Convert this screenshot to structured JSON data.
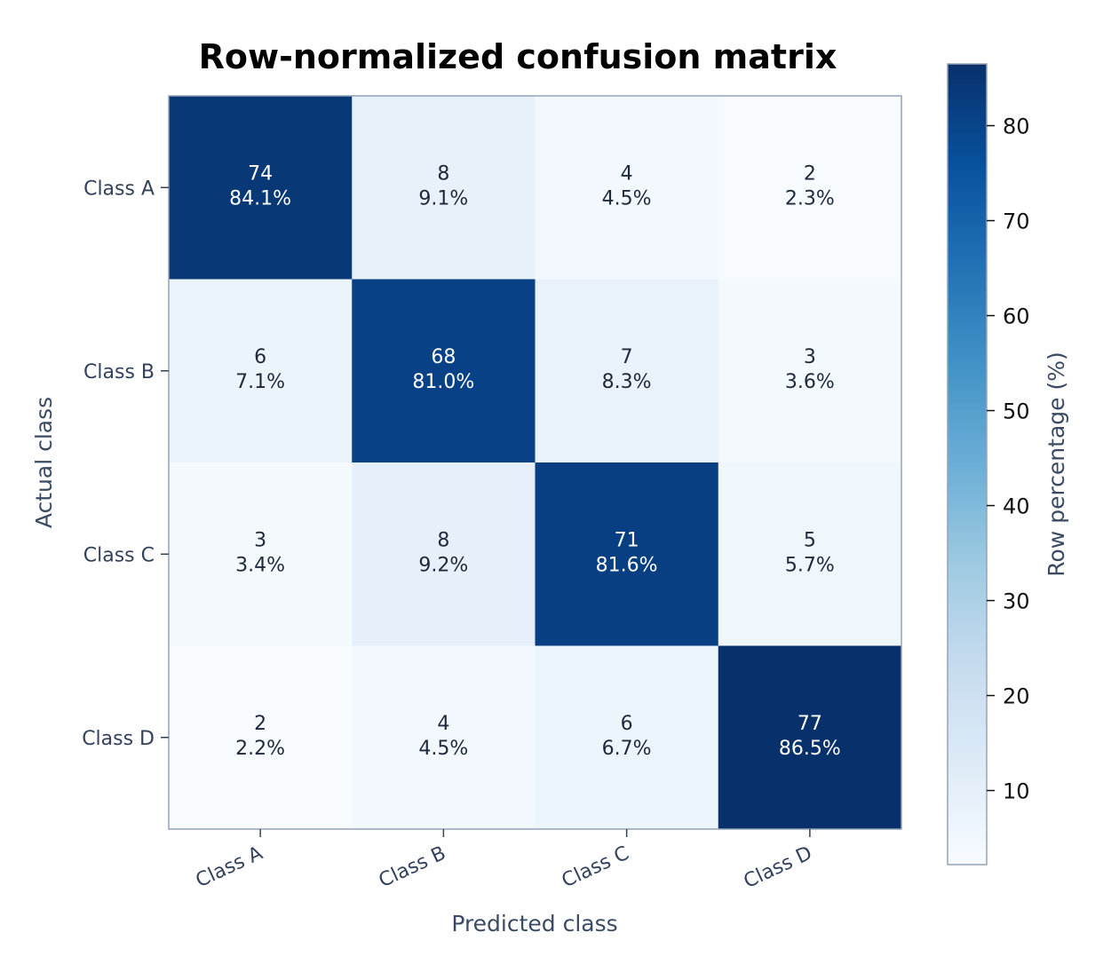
{
  "chart_data": {
    "type": "heatmap",
    "title": "Row-normalized confusion matrix",
    "xlabel": "Predicted class",
    "ylabel": "Actual class",
    "x_categories": [
      "Class A",
      "Class B",
      "Class C",
      "Class D"
    ],
    "y_categories": [
      "Class A",
      "Class B",
      "Class C",
      "Class D"
    ],
    "counts": [
      [
        74,
        8,
        4,
        2
      ],
      [
        6,
        68,
        7,
        3
      ],
      [
        3,
        8,
        71,
        5
      ],
      [
        2,
        4,
        6,
        77
      ]
    ],
    "percent_labels": [
      [
        "84.1%",
        "9.1%",
        "4.5%",
        "2.3%"
      ],
      [
        "7.1%",
        "81.0%",
        "8.3%",
        "3.6%"
      ],
      [
        "3.4%",
        "9.2%",
        "81.6%",
        "5.7%"
      ],
      [
        "2.2%",
        "4.5%",
        "6.7%",
        "86.5%"
      ]
    ],
    "percent_values": [
      [
        84.1,
        9.1,
        4.5,
        2.3
      ],
      [
        7.1,
        81.0,
        8.3,
        3.6
      ],
      [
        3.4,
        9.2,
        81.6,
        5.7
      ],
      [
        2.2,
        4.5,
        6.7,
        86.5
      ]
    ],
    "colorbar": {
      "label": "Row percentage (%)",
      "range": [
        2.2,
        86.5
      ],
      "ticks": [
        10,
        20,
        30,
        40,
        50,
        60,
        70,
        80
      ],
      "colormap": "Blues"
    },
    "grid": false
  }
}
